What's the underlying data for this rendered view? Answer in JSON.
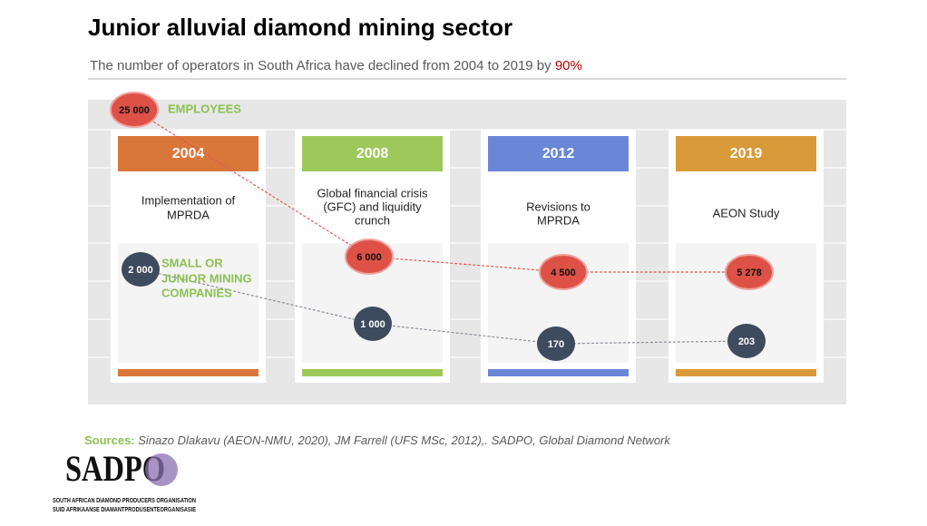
{
  "title": "Junior alluvial diamond mining sector",
  "subtitle": {
    "text": "The number of operators in South Africa have declined from 2004 to 2019 by",
    "highlight": "90%"
  },
  "employees_label": "EMPLOYEES",
  "companies_label": [
    "SMALL OR",
    "JUNIOR MINING",
    "COMPANIES"
  ],
  "periods": [
    {
      "year": "2004",
      "color": "#d9773a",
      "event": [
        "Implementation of",
        "MPRDA"
      ],
      "employees": "25 000",
      "companies": "2 000"
    },
    {
      "year": "2008",
      "color": "#9dc85a",
      "event": [
        "Global financial crisis",
        "(GFC) and liquidity",
        "crunch"
      ],
      "employees": "6 000",
      "companies": "1 000"
    },
    {
      "year": "2012",
      "color": "#6a86d6",
      "event": [
        "Revisions to",
        "MPRDA"
      ],
      "employees": "4 500",
      "companies": "170"
    },
    {
      "year": "2019",
      "color": "#d99a3a",
      "event": [
        "AEON Study"
      ],
      "employees": "5 278",
      "companies": "203"
    }
  ],
  "sources": {
    "label": "Sources:",
    "text": "Sinazo Dlakavu (AEON-NMU, 2020), JM Farrell (UFS MSc, 2012),. SADPO, Global Diamond Network"
  },
  "logo": {
    "name": "SADPO",
    "line1": "SOUTH AFRICAN DIAMOND PRODUCERS ORGANISATION",
    "line2": "SUID AFRIKAANSE DIAMANTPRODUSENTEORGANISASIE"
  }
}
